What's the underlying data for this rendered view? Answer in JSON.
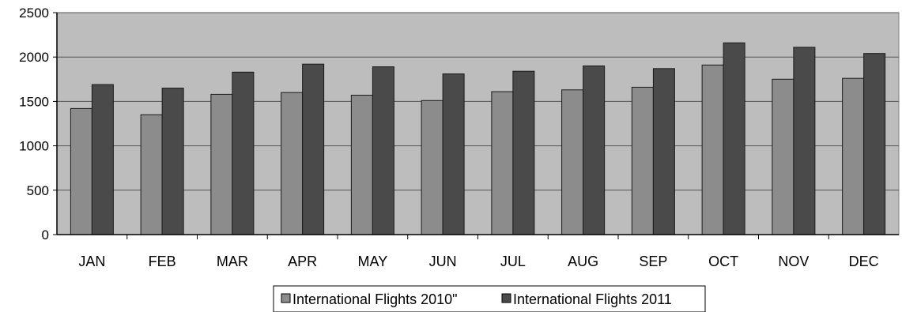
{
  "chart_data": {
    "type": "bar",
    "categories": [
      "JAN",
      "FEB",
      "MAR",
      "APR",
      "MAY",
      "JUN",
      "JUL",
      "AUG",
      "SEP",
      "OCT",
      "NOV",
      "DEC"
    ],
    "series": [
      {
        "name": "International Flights 2010\"",
        "values": [
          1420,
          1350,
          1580,
          1600,
          1570,
          1510,
          1610,
          1630,
          1660,
          1910,
          1750,
          1760
        ],
        "color": "#8c8c8c"
      },
      {
        "name": "International Flights 2011",
        "values": [
          1690,
          1650,
          1830,
          1920,
          1890,
          1810,
          1840,
          1900,
          1870,
          2160,
          2110,
          2040
        ],
        "color": "#4a4a4a"
      }
    ],
    "y_ticks": [
      "0",
      "500",
      "1000",
      "1500",
      "2000",
      "2500"
    ],
    "ylim": [
      0,
      2500
    ],
    "grid": true,
    "legend_position": "bottom",
    "colors": {
      "plot_background": "#bdbdbd",
      "gridline": "#555555",
      "bar_outline": "#1a1a1a"
    }
  }
}
